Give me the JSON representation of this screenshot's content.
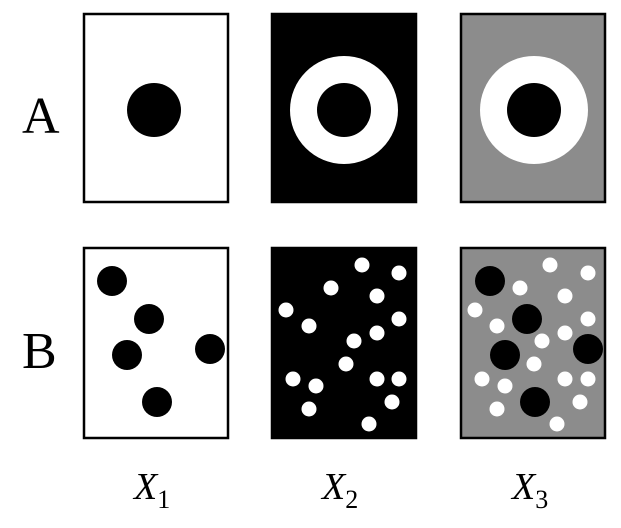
{
  "rows": [
    {
      "label": "A"
    },
    {
      "label": "B"
    }
  ],
  "columns": [
    {
      "letter": "X",
      "sub": "1"
    },
    {
      "letter": "X",
      "sub": "2"
    },
    {
      "letter": "X",
      "sub": "3"
    }
  ],
  "colors": {
    "white": "#ffffff",
    "black": "#000000",
    "gray": "#8c8c8c",
    "border": "#000000"
  }
}
